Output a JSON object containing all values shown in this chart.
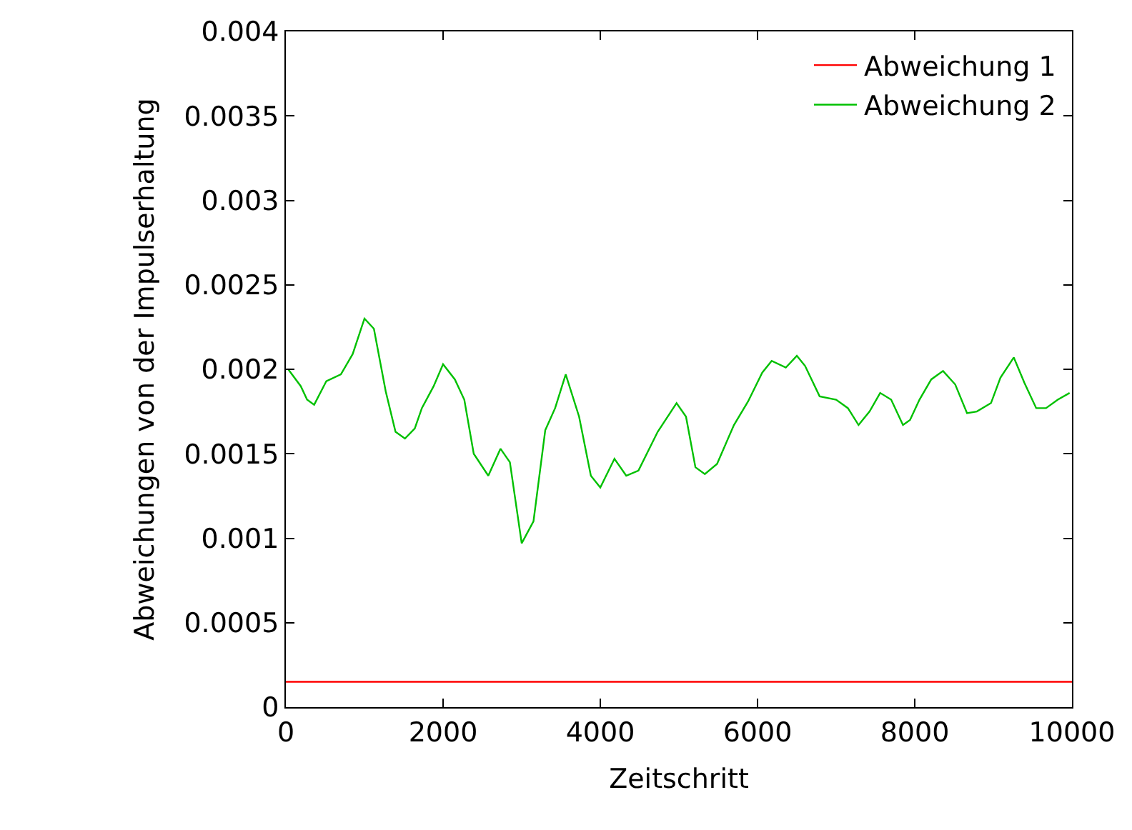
{
  "chart_data": {
    "type": "line",
    "xlabel": "Zeitschritt",
    "ylabel": "Abweichungen von der Impulserhaltung",
    "xlim": [
      0,
      10000
    ],
    "xticks": [
      0,
      2000,
      4000,
      6000,
      8000,
      10000
    ],
    "ylim": [
      0,
      0.004
    ],
    "yticks": [
      0,
      0.0005,
      0.001,
      0.0015,
      0.002,
      0.0025,
      0.003,
      0.0035,
      0.004
    ],
    "legend": "top right",
    "marker": "none",
    "line_style": "solid",
    "series": [
      {
        "name": "Abweichung 1",
        "color": "#ff0000",
        "x": [
          0,
          10000
        ],
        "values": [
          0.00015,
          0.00015
        ]
      },
      {
        "name": "Abweichung 2",
        "color": "#00c000",
        "x": [
          30,
          190,
          270,
          360,
          515,
          700,
          850,
          1000,
          1120,
          1270,
          1395,
          1515,
          1640,
          1730,
          1880,
          2000,
          2150,
          2270,
          2390,
          2575,
          2730,
          2850,
          3000,
          3150,
          3300,
          3425,
          3560,
          3730,
          3880,
          4000,
          4180,
          4330,
          4485,
          4730,
          4970,
          5090,
          5210,
          5330,
          5485,
          5700,
          5880,
          6060,
          6180,
          6360,
          6500,
          6605,
          6790,
          7000,
          7150,
          7285,
          7425,
          7560,
          7700,
          7850,
          7940,
          8060,
          8210,
          8360,
          8515,
          8665,
          8790,
          8970,
          9090,
          9260,
          9395,
          9545,
          9670,
          9820,
          9970
        ],
        "values": [
          0.002,
          0.0019,
          0.00182,
          0.00179,
          0.00193,
          0.00197,
          0.00209,
          0.0023,
          0.00224,
          0.00187,
          0.00163,
          0.00159,
          0.00165,
          0.00177,
          0.0019,
          0.00203,
          0.00194,
          0.00182,
          0.0015,
          0.00137,
          0.00153,
          0.00145,
          0.00097,
          0.0011,
          0.00164,
          0.00177,
          0.00197,
          0.00172,
          0.00137,
          0.0013,
          0.00147,
          0.00137,
          0.0014,
          0.00163,
          0.0018,
          0.00172,
          0.00142,
          0.00138,
          0.00144,
          0.00167,
          0.00181,
          0.00198,
          0.00205,
          0.00201,
          0.00208,
          0.00202,
          0.00184,
          0.00182,
          0.00177,
          0.00167,
          0.00175,
          0.00186,
          0.00182,
          0.00167,
          0.0017,
          0.00182,
          0.00194,
          0.00199,
          0.00191,
          0.00174,
          0.00175,
          0.0018,
          0.00195,
          0.00207,
          0.00192,
          0.00177,
          0.00177,
          0.00182,
          0.00186
        ]
      }
    ]
  }
}
